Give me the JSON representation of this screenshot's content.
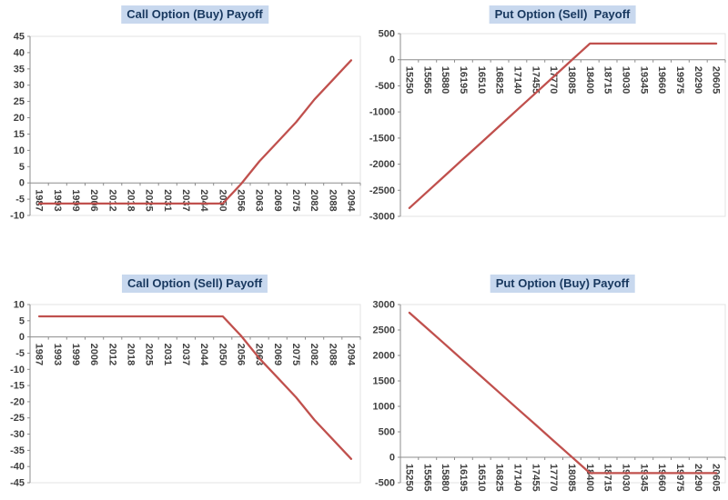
{
  "page": {
    "background": "#ffffff",
    "description_texts": []
  },
  "style": {
    "title_bg": "#c8d8ee",
    "title_text": "#17375e",
    "axis_color": "#8c8c8c",
    "tick_label_color": "#404040",
    "plot_border_color": "#e3e3e3",
    "line_color": "#c0504d"
  },
  "chart_data": [
    {
      "type": "line",
      "title": "Call Option (Buy) Payoff",
      "x_labels": [
        "1987",
        "1993",
        "1999",
        "2006",
        "2012",
        "2018",
        "2025",
        "2031",
        "2037",
        "2044",
        "2050",
        "2056",
        "2063",
        "2069",
        "2075",
        "2082",
        "2088",
        "2094"
      ],
      "values": [
        -6.35,
        -6.35,
        -6.35,
        -6.35,
        -6.35,
        -6.35,
        -6.35,
        -6.35,
        -6.35,
        -6.35,
        -6.35,
        -0.35,
        6.65,
        12.65,
        18.65,
        25.65,
        31.65,
        37.65
      ],
      "ylim": [
        -10,
        45
      ],
      "ytick_step": 5,
      "line_color": "#c0504d",
      "grid": false,
      "legend": false,
      "x_label_rotation": 90
    },
    {
      "type": "line",
      "title": "Put Option (Sell)  Payoff",
      "x_labels": [
        "15250",
        "15565",
        "15880",
        "16195",
        "16510",
        "16825",
        "17140",
        "17455",
        "17770",
        "18085",
        "18400",
        "18715",
        "19030",
        "19345",
        "19660",
        "19975",
        "20290",
        "20605"
      ],
      "values": [
        -2840,
        -2525,
        -2210,
        -1895,
        -1580,
        -1265,
        -950,
        -635,
        -320,
        -5,
        310,
        310,
        310,
        310,
        310,
        310,
        310,
        310
      ],
      "ylim": [
        -3000,
        500
      ],
      "ytick_step": 500,
      "line_color": "#c0504d",
      "grid": false,
      "legend": false,
      "x_label_rotation": 90
    },
    {
      "type": "line",
      "title": "Call Option (Sell) Payoff",
      "x_labels": [
        "1987",
        "1993",
        "1999",
        "2006",
        "2012",
        "2018",
        "2025",
        "2031",
        "2037",
        "2044",
        "2050",
        "2056",
        "2063",
        "2069",
        "2075",
        "2082",
        "2088",
        "2094"
      ],
      "values": [
        6.35,
        6.35,
        6.35,
        6.35,
        6.35,
        6.35,
        6.35,
        6.35,
        6.35,
        6.35,
        6.35,
        0.35,
        -6.65,
        -12.65,
        -18.65,
        -25.65,
        -31.65,
        -37.65
      ],
      "ylim": [
        -45,
        10
      ],
      "ytick_step": 5,
      "line_color": "#c0504d",
      "grid": false,
      "legend": false,
      "x_label_rotation": 90
    },
    {
      "type": "line",
      "title": "Put Option (Buy) Payoff",
      "x_labels": [
        "15250",
        "15565",
        "15880",
        "16195",
        "16510",
        "16825",
        "17140",
        "17455",
        "17770",
        "18085",
        "18400",
        "18715",
        "19030",
        "19345",
        "19660",
        "19975",
        "20290",
        "20605"
      ],
      "values": [
        2840,
        2525,
        2210,
        1895,
        1580,
        1265,
        950,
        635,
        320,
        5,
        -310,
        -310,
        -310,
        -310,
        -310,
        -310,
        -310,
        -310
      ],
      "ylim": [
        -500,
        3000
      ],
      "ytick_step": 500,
      "line_color": "#c0504d",
      "grid": false,
      "legend": false,
      "x_label_rotation": 90
    }
  ]
}
